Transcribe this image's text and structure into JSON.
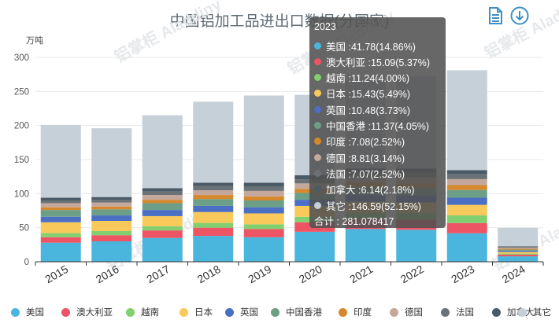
{
  "title": "中国铝加工品进出口数据(分国家)",
  "unit": "万吨",
  "watermark": "铝掌柜 Aladdiny",
  "toolbox": {
    "save": "save-as-image-icon",
    "download": "download-icon"
  },
  "colors": {
    "美国": "#4bb6dd",
    "澳大利亚": "#ed5464",
    "越南": "#82cf6f",
    "日本": "#f9c95b",
    "英国": "#4a6fc4",
    "中国香港": "#6c9f88",
    "印度": "#d6882d",
    "德国": "#c5a89c",
    "法国": "#6a7277",
    "加拿大": "#4a5a66",
    "其它": "#c5d0d8"
  },
  "chart_data": {
    "type": "bar",
    "stacked": true,
    "title": "中国铝加工品进出口数据(分国家)",
    "ylabel": "万吨",
    "ylim": [
      0,
      300
    ],
    "yticks": [
      0,
      50,
      100,
      150,
      200,
      250,
      300
    ],
    "categories": [
      "2015",
      "2016",
      "2017",
      "2018",
      "2019",
      "2020",
      "2021",
      "2022",
      "2023",
      "2024"
    ],
    "series": [
      {
        "name": "美国",
        "values": [
          28,
          30,
          35,
          38,
          36,
          44,
          48,
          47,
          41.78,
          8
        ]
      },
      {
        "name": "澳大利亚",
        "values": [
          8,
          9,
          11,
          12,
          12,
          14,
          15,
          15,
          15.09,
          2.5
        ]
      },
      {
        "name": "越南",
        "values": [
          6,
          6,
          6,
          7,
          7,
          8,
          9,
          10,
          11.24,
          1.5
        ]
      },
      {
        "name": "日本",
        "values": [
          16,
          15,
          15,
          16,
          16,
          16,
          16,
          15,
          15.43,
          2.5
        ]
      },
      {
        "name": "英国",
        "values": [
          8,
          8,
          9,
          9,
          9,
          9,
          10,
          10,
          10.48,
          1.8
        ]
      },
      {
        "name": "中国香港",
        "values": [
          10,
          9,
          10,
          10,
          10,
          10,
          11,
          11,
          11.37,
          1.5
        ]
      },
      {
        "name": "印度",
        "values": [
          4,
          4,
          5,
          6,
          6,
          6,
          7,
          7,
          7.08,
          1.2
        ]
      },
      {
        "name": "德国",
        "values": [
          6,
          6,
          7,
          7,
          8,
          8,
          8,
          9,
          8.81,
          1.5
        ]
      },
      {
        "name": "法国",
        "values": [
          4,
          4,
          5,
          6,
          6,
          6,
          7,
          7,
          7.07,
          1.2
        ]
      },
      {
        "name": "加拿大",
        "values": [
          4,
          4,
          5,
          5,
          6,
          6,
          6,
          6,
          6.14,
          1.0
        ]
      },
      {
        "name": "其它",
        "values": [
          107,
          101,
          107,
          119,
          128,
          118,
          130,
          135,
          146.59,
          27
        ]
      }
    ]
  },
  "tooltip": {
    "year": "2023",
    "rows": [
      {
        "label": "美国 :41.78(14.86%)",
        "color": "#4bb6dd"
      },
      {
        "label": "澳大利亚 :15.09(5.37%)",
        "color": "#ed5464"
      },
      {
        "label": "越南 :11.24(4.00%)",
        "color": "#82cf6f"
      },
      {
        "label": "日本 :15.43(5.49%)",
        "color": "#f9c95b"
      },
      {
        "label": "英国 :10.48(3.73%)",
        "color": "#4a6fc4"
      },
      {
        "label": "中国香港 :11.37(4.05%)",
        "color": "#6c9f88"
      },
      {
        "label": "印度 :7.08(2.52%)",
        "color": "#d6882d"
      },
      {
        "label": "德国 :8.81(3.14%)",
        "color": "#c5a89c"
      },
      {
        "label": "法国 :7.07(2.52%)",
        "color": "#6a7277"
      },
      {
        "label": "加拿大 :6.14(2.18%)",
        "color": "#4a5a66"
      },
      {
        "label": "其它 :146.59(52.15%)",
        "color": "#c5d0d8"
      }
    ],
    "total": "合计 : 281.078417"
  }
}
